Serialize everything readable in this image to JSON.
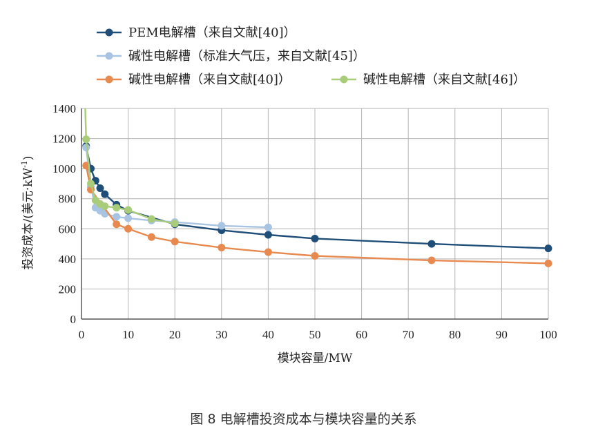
{
  "caption": "图 8 电解槽投资成本与模块容量的关系",
  "chart_data": {
    "type": "line",
    "title": "",
    "xlabel": "模块容量/MW",
    "ylabel_main": "投资成本/(美元·kW",
    "ylabel_sup": "-1",
    "ylabel_end": ")",
    "xlim": [
      0,
      100
    ],
    "ylim": [
      0,
      1400
    ],
    "xticks": [
      0,
      10,
      20,
      30,
      40,
      50,
      60,
      70,
      80,
      90,
      100
    ],
    "yticks": [
      0,
      200,
      400,
      600,
      800,
      1000,
      1200,
      1400
    ],
    "grid": true,
    "legend_position": "top",
    "series": [
      {
        "name": "PEM电解槽（来自文献[40]）",
        "color": "#1f4e79",
        "x": [
          1,
          2,
          3,
          4,
          5,
          7.5,
          10,
          20,
          30,
          40,
          50,
          75,
          100
        ],
        "y": [
          1150,
          1000,
          920,
          870,
          830,
          760,
          720,
          630,
          590,
          560,
          535,
          500,
          470
        ]
      },
      {
        "name": "碱性电解槽（标准大气压，来自文献[45]）",
        "color": "#a9c4e2",
        "x": [
          1,
          2,
          3,
          4,
          5,
          7.5,
          10,
          15,
          20,
          30,
          40
        ],
        "y": [
          1140,
          880,
          740,
          720,
          700,
          680,
          670,
          655,
          645,
          620,
          610
        ]
      },
      {
        "name": "碱性电解槽（来自文献[40]）",
        "color": "#e8894f",
        "x": [
          1,
          2,
          7.5,
          10,
          15,
          20,
          30,
          40,
          50,
          75,
          100
        ],
        "y": [
          1020,
          860,
          630,
          600,
          545,
          515,
          475,
          445,
          420,
          390,
          370
        ]
      },
      {
        "name": "碱性电解槽（来自文献[46]）",
        "color": "#a8cc7a",
        "x": [
          0.8,
          1,
          2,
          3,
          4,
          5,
          7.5,
          10,
          15,
          20
        ],
        "y": [
          1400,
          1195,
          900,
          790,
          765,
          750,
          740,
          725,
          665,
          635
        ]
      }
    ]
  }
}
